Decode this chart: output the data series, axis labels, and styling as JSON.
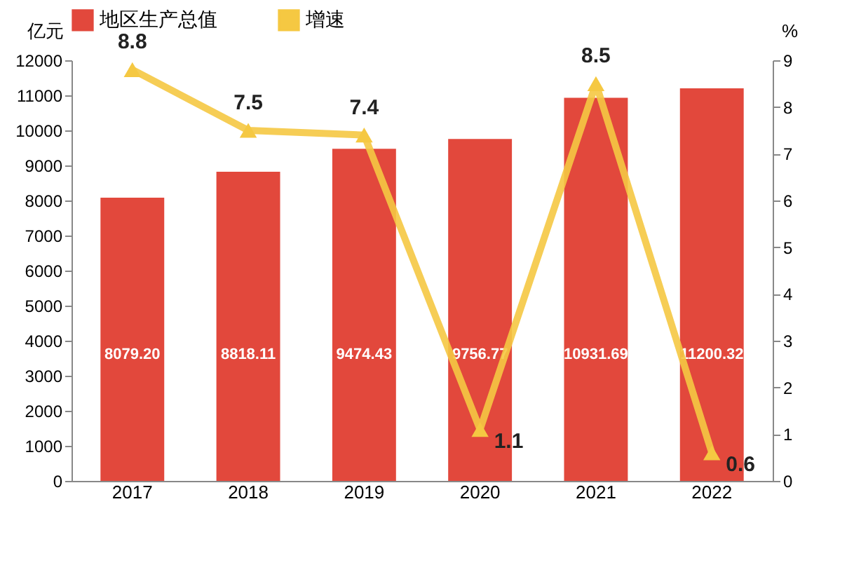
{
  "chart_data": {
    "type": "bar",
    "categories": [
      "2017",
      "2018",
      "2019",
      "2020",
      "2021",
      "2022"
    ],
    "ylabel": "亿元",
    "y2label": "%",
    "ylim": [
      0,
      12000
    ],
    "yticks": [
      0,
      1000,
      2000,
      3000,
      4000,
      5000,
      6000,
      7000,
      8000,
      9000,
      10000,
      11000,
      12000
    ],
    "y2lim": [
      0,
      9
    ],
    "y2ticks": [
      0,
      1,
      2,
      3,
      4,
      5,
      6,
      7,
      8,
      9
    ],
    "legend": "top",
    "grid": false,
    "marker": "triangle",
    "line_style": "solid",
    "series": [
      {
        "name": "地区生产总值",
        "color": "#e2483c",
        "values": [
          8079.2,
          8818.11,
          9474.43,
          9756.77,
          10931.69,
          11200.32
        ],
        "value_labels": [
          "8079.20",
          "8818.11",
          "9474.43",
          "9756.77",
          "10931.69",
          "11200.32"
        ]
      },
      {
        "name": "增速",
        "type": "line",
        "axis": "y2",
        "color": "#f5c842",
        "values": [
          8.8,
          7.5,
          7.4,
          1.1,
          8.5,
          0.6
        ],
        "value_labels": [
          "8.8",
          "7.5",
          "7.4",
          "1.1",
          "8.5",
          "0.6"
        ]
      }
    ]
  }
}
